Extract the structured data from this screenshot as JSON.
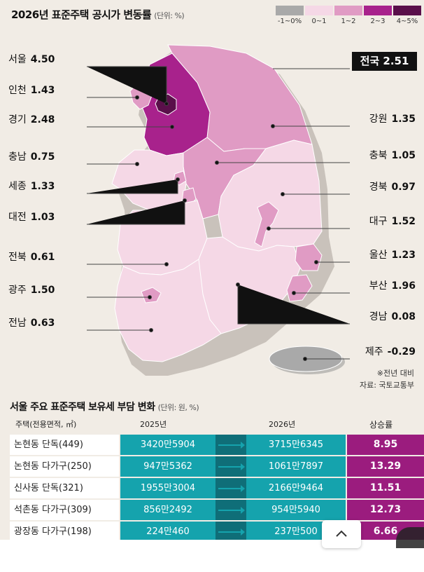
{
  "title": "2026년 표준주택 공시가 변동률",
  "title_unit": "(단위: %)",
  "legend": [
    {
      "label": "-1~0%",
      "color": "#a9a9a9"
    },
    {
      "label": "0~1",
      "color": "#f5d8e6"
    },
    {
      "label": "1~2",
      "color": "#e09bc4"
    },
    {
      "label": "2~3",
      "color": "#a8228c"
    },
    {
      "label": "4~5%",
      "color": "#5a0f4a"
    }
  ],
  "national": {
    "name": "전국",
    "value": "2.51"
  },
  "regions_left": [
    {
      "name": "서울",
      "value": "4.50"
    },
    {
      "name": "인천",
      "value": "1.43"
    },
    {
      "name": "경기",
      "value": "2.48"
    },
    {
      "name": "충남",
      "value": "0.75"
    },
    {
      "name": "세종",
      "value": "1.33"
    },
    {
      "name": "대전",
      "value": "1.03"
    },
    {
      "name": "전북",
      "value": "0.61"
    },
    {
      "name": "광주",
      "value": "1.50"
    },
    {
      "name": "전남",
      "value": "0.63"
    }
  ],
  "regions_right": [
    {
      "name": "강원",
      "value": "1.35"
    },
    {
      "name": "충북",
      "value": "1.05"
    },
    {
      "name": "경북",
      "value": "0.97"
    },
    {
      "name": "대구",
      "value": "1.52"
    },
    {
      "name": "울산",
      "value": "1.23"
    },
    {
      "name": "부산",
      "value": "1.96"
    },
    {
      "name": "경남",
      "value": "0.08"
    },
    {
      "name": "제주",
      "value": "-0.29"
    }
  ],
  "note": {
    "line1": "※전년 대비",
    "line2": "자료: 국토교통부"
  },
  "table": {
    "title": "서울 주요 표준주택 보유세 부담 변화",
    "unit": "(단위: 원, %)",
    "headers": {
      "house": "주택(전용면적, ㎡)",
      "y2025": "2025년",
      "y2026": "2026년",
      "rate": "상승률"
    },
    "rows": [
      {
        "name": "논현동 단독(449)",
        "y2025": "3420만5904",
        "y2026": "3715만6345",
        "rate": "8.95"
      },
      {
        "name": "논현동 다가구(250)",
        "y2025": "947만5362",
        "y2026": "1061만7897",
        "rate": "13.29"
      },
      {
        "name": "신사동 단독(321)",
        "y2025": "1955만3004",
        "y2026": "2166만9464",
        "rate": "11.51"
      },
      {
        "name": "석촌동 다가구(309)",
        "y2025": "856만2492",
        "y2026": "954만5940",
        "rate": "12.73"
      },
      {
        "name": "광장동 다가구(198)",
        "y2025": "224만460",
        "y2026": "237만500",
        "rate": "6.66"
      }
    ]
  },
  "scroll_top_icon": "chevron-up-icon"
}
